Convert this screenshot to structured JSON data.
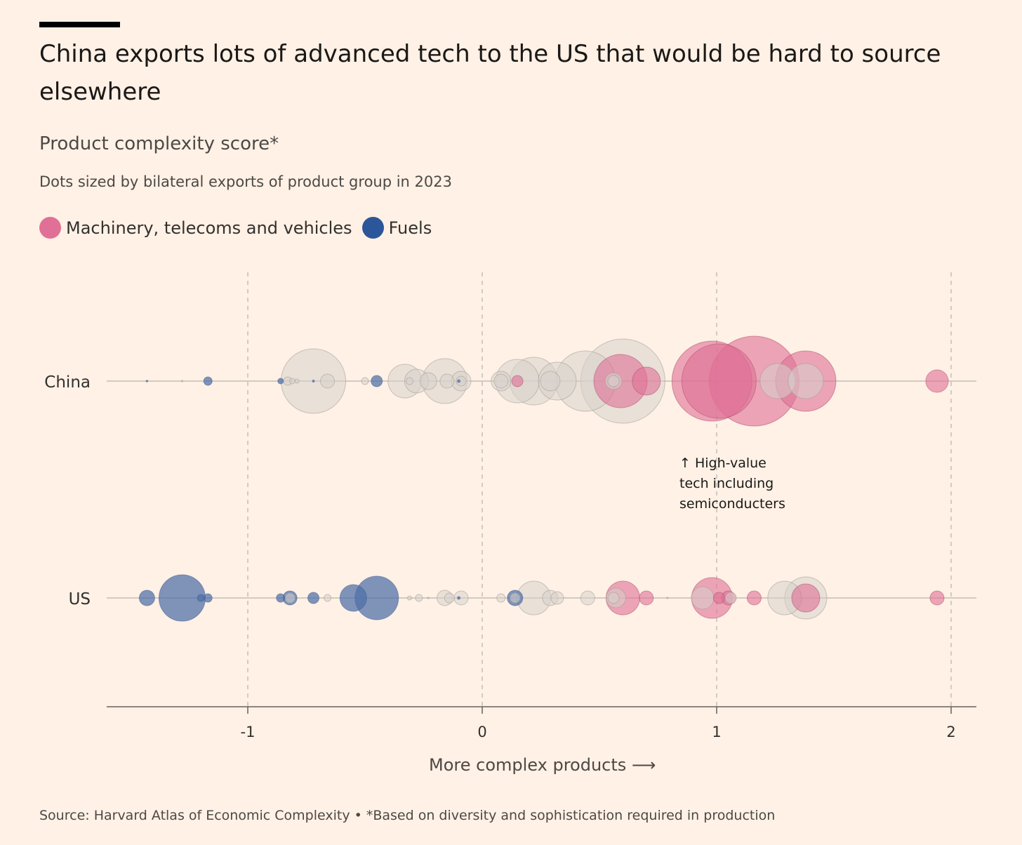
{
  "title": "China exports lots of advanced tech to the US that would be hard to source elsewhere",
  "subtitle": "Product complexity score*",
  "description": "Dots sized by bilateral exports of product group in 2023",
  "legend": [
    {
      "label": "Machinery, telecoms and vehicles",
      "color": "#E07096"
    },
    {
      "label": "Fuels",
      "color": "#2B569A"
    }
  ],
  "colors": {
    "machinery": "#E07096",
    "fuels": "#4D6FA8",
    "other": "#D7D2CC"
  },
  "annotation": {
    "lines": [
      "↑ High-value",
      "tech including",
      "semiconducters"
    ]
  },
  "axis_title": "More complex products ⟶",
  "source": "Source: Harvard Atlas of Economic Complexity • *Based on diversity and sophistication required in production",
  "chart_data": {
    "type": "scatter",
    "title": "China exports lots of advanced tech to the US that would be hard to source elsewhere",
    "subtitle": "Product complexity score*",
    "xlabel": "More complex products",
    "xlim": [
      -1.6,
      2.1
    ],
    "xticks": [
      -1,
      0,
      1,
      2
    ],
    "xtick_labels": [
      "-1",
      "0",
      "1",
      "2"
    ],
    "grid": "vertical dashed at ticks",
    "legend_position": "top-left",
    "categories": [
      "China",
      "US"
    ],
    "series": [
      {
        "name": "China",
        "points": [
          {
            "x": -1.43,
            "size": 1,
            "group": "fuels"
          },
          {
            "x": -1.28,
            "size": 0.5,
            "group": "other"
          },
          {
            "x": -1.17,
            "size": 6,
            "group": "fuels"
          },
          {
            "x": -0.86,
            "size": 4,
            "group": "fuels"
          },
          {
            "x": -0.83,
            "size": 6,
            "group": "other"
          },
          {
            "x": -0.81,
            "size": 4,
            "group": "other"
          },
          {
            "x": -0.79,
            "size": 3,
            "group": "other"
          },
          {
            "x": -0.72,
            "size": 46,
            "group": "other"
          },
          {
            "x": -0.72,
            "size": 1.5,
            "group": "fuels"
          },
          {
            "x": -0.66,
            "size": 10,
            "group": "other"
          },
          {
            "x": -0.5,
            "size": 5,
            "group": "other"
          },
          {
            "x": -0.45,
            "size": 8,
            "group": "fuels"
          },
          {
            "x": -0.33,
            "size": 24,
            "group": "other"
          },
          {
            "x": -0.31,
            "size": 5,
            "group": "other"
          },
          {
            "x": -0.28,
            "size": 17,
            "group": "other"
          },
          {
            "x": -0.23,
            "size": 12,
            "group": "other"
          },
          {
            "x": -0.16,
            "size": 32,
            "group": "other"
          },
          {
            "x": -0.15,
            "size": 10,
            "group": "other"
          },
          {
            "x": -0.09,
            "size": 14,
            "group": "other"
          },
          {
            "x": -0.09,
            "size": 7,
            "group": "other"
          },
          {
            "x": -0.1,
            "size": 2,
            "group": "fuels"
          },
          {
            "x": 0.08,
            "size": 14,
            "group": "other"
          },
          {
            "x": 0.08,
            "size": 10,
            "group": "other"
          },
          {
            "x": 0.15,
            "size": 31,
            "group": "other"
          },
          {
            "x": 0.15,
            "size": 8,
            "group": "machinery"
          },
          {
            "x": 0.22,
            "size": 34,
            "group": "other"
          },
          {
            "x": 0.29,
            "size": 14,
            "group": "other"
          },
          {
            "x": 0.32,
            "size": 27,
            "group": "other"
          },
          {
            "x": 0.44,
            "size": 43,
            "group": "other"
          },
          {
            "x": 0.6,
            "size": 60,
            "group": "other"
          },
          {
            "x": 0.59,
            "size": 38,
            "group": "machinery"
          },
          {
            "x": 0.56,
            "size": 12,
            "group": "other"
          },
          {
            "x": 0.56,
            "size": 8,
            "group": "other"
          },
          {
            "x": 0.7,
            "size": 20,
            "group": "machinery"
          },
          {
            "x": 0.98,
            "size": 57,
            "group": "machinery"
          },
          {
            "x": 1.01,
            "size": 53,
            "group": "machinery"
          },
          {
            "x": 1.16,
            "size": 64,
            "group": "machinery"
          },
          {
            "x": 1.26,
            "size": 25,
            "group": "other"
          },
          {
            "x": 1.38,
            "size": 43,
            "group": "machinery"
          },
          {
            "x": 1.38,
            "size": 25,
            "group": "other"
          },
          {
            "x": 1.94,
            "size": 16,
            "group": "machinery"
          }
        ]
      },
      {
        "name": "US",
        "points": [
          {
            "x": -1.43,
            "size": 11,
            "group": "fuels"
          },
          {
            "x": -1.28,
            "size": 33,
            "group": "fuels"
          },
          {
            "x": -1.2,
            "size": 5,
            "group": "fuels"
          },
          {
            "x": -1.17,
            "size": 6,
            "group": "fuels"
          },
          {
            "x": -0.86,
            "size": 6,
            "group": "fuels"
          },
          {
            "x": -0.82,
            "size": 10,
            "group": "fuels"
          },
          {
            "x": -0.82,
            "size": 7,
            "group": "other"
          },
          {
            "x": -0.72,
            "size": 8,
            "group": "fuels"
          },
          {
            "x": -0.66,
            "size": 5,
            "group": "other"
          },
          {
            "x": -0.55,
            "size": 19,
            "group": "fuels"
          },
          {
            "x": -0.45,
            "size": 31,
            "group": "fuels"
          },
          {
            "x": -0.31,
            "size": 3,
            "group": "other"
          },
          {
            "x": -0.27,
            "size": 5,
            "group": "other"
          },
          {
            "x": -0.23,
            "size": 1,
            "group": "other"
          },
          {
            "x": -0.16,
            "size": 11,
            "group": "other"
          },
          {
            "x": -0.14,
            "size": 7,
            "group": "other"
          },
          {
            "x": -0.09,
            "size": 10,
            "group": "other"
          },
          {
            "x": -0.1,
            "size": 2,
            "group": "fuels"
          },
          {
            "x": 0.08,
            "size": 6,
            "group": "other"
          },
          {
            "x": 0.14,
            "size": 11,
            "group": "fuels"
          },
          {
            "x": 0.14,
            "size": 7,
            "group": "other"
          },
          {
            "x": 0.22,
            "size": 24,
            "group": "other"
          },
          {
            "x": 0.29,
            "size": 11,
            "group": "other"
          },
          {
            "x": 0.32,
            "size": 9,
            "group": "other"
          },
          {
            "x": 0.45,
            "size": 10,
            "group": "other"
          },
          {
            "x": 0.57,
            "size": 14,
            "group": "other"
          },
          {
            "x": 0.6,
            "size": 24,
            "group": "machinery"
          },
          {
            "x": 0.56,
            "size": 8,
            "group": "other"
          },
          {
            "x": 0.7,
            "size": 10,
            "group": "machinery"
          },
          {
            "x": 0.79,
            "size": 1,
            "group": "other"
          },
          {
            "x": 0.94,
            "size": 16,
            "group": "other"
          },
          {
            "x": 0.98,
            "size": 29,
            "group": "machinery"
          },
          {
            "x": 1.01,
            "size": 8,
            "group": "machinery"
          },
          {
            "x": 1.05,
            "size": 10,
            "group": "machinery"
          },
          {
            "x": 1.06,
            "size": 8,
            "group": "other"
          },
          {
            "x": 1.16,
            "size": 10,
            "group": "machinery"
          },
          {
            "x": 1.29,
            "size": 24,
            "group": "other"
          },
          {
            "x": 1.38,
            "size": 30,
            "group": "other"
          },
          {
            "x": 1.38,
            "size": 20,
            "group": "machinery"
          },
          {
            "x": 1.94,
            "size": 10,
            "group": "machinery"
          }
        ]
      }
    ]
  }
}
